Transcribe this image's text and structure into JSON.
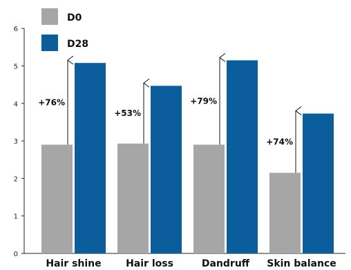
{
  "chart_data": {
    "type": "bar",
    "categories": [
      "Hair shine",
      "Hair loss",
      "Dandruff",
      "Skin balance"
    ],
    "series": [
      {
        "name": "D0",
        "values": [
          2.9,
          2.93,
          2.9,
          2.15
        ],
        "color": "#a6a6a6"
      },
      {
        "name": "D28",
        "values": [
          5.08,
          4.47,
          5.15,
          3.73
        ],
        "color": "#0b5e9b"
      }
    ],
    "annotations": [
      "+76%",
      "+53%",
      "+79%",
      "+74%"
    ],
    "yticks": [
      0,
      1,
      2,
      3,
      4,
      5,
      6
    ],
    "ylim": [
      0,
      6
    ],
    "grid": false,
    "legend": "top-left"
  }
}
